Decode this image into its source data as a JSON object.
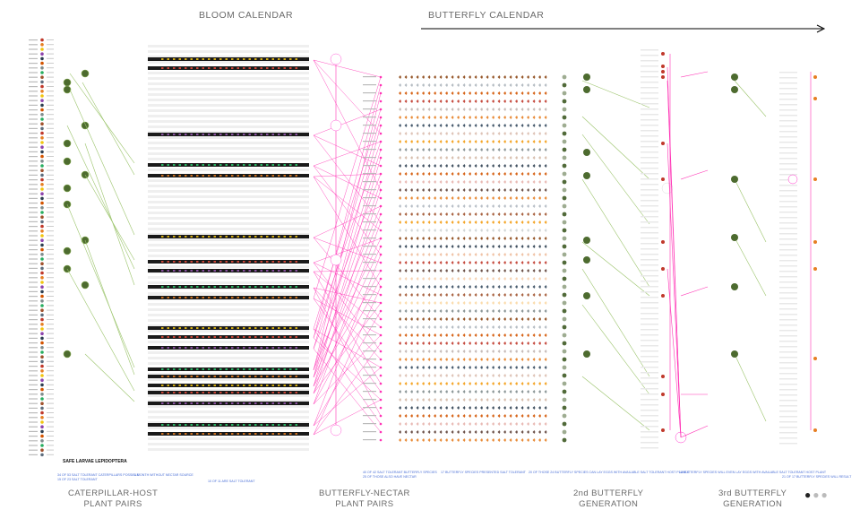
{
  "headers": {
    "bloom": "BLOOM CALENDAR",
    "butterfly": "BUTTERFLY CALENDAR"
  },
  "footers": {
    "caterpillar": [
      "CATERPILLAR-HOST",
      "PLANT PAIRS"
    ],
    "nectar": [
      "BUTTERFLY-NECTAR",
      "PLANT PAIRS"
    ],
    "gen2": [
      "2nd BUTTERFLY",
      "GENERATION"
    ],
    "gen3": [
      "3rd BUTTERFLY",
      "GENERATION"
    ]
  },
  "legend_label": "SAFE LARVAE LEPIDOPTERA",
  "notes": [
    "34 OF 53 SALT TOLERANT CATERPILLARS POSSIBLE",
    "15 OF 23 SALT TOLERANT",
    "1 MONTH WITHOUT NECTAR SOURCE",
    "10 OF 11 ARE SALT TOLERANT",
    "40 OF 42 SALT TOLERANT BUTTERFLY SPECIES",
    "25 OF THOSE ALSO HAVE NECTAR",
    "17 BUTTERFLY SPECIES PRESENTED SALT TOLERANT",
    "20 OF THOSE 24 BUTTERFLY SPECIES CAN LAY EGGS WITH AVAILABLE SALT TOLERANT HOST PLANTS",
    "12 BUTTERFLY SPECIES WILL EVEN LAY EGGS WITH AVAILABLE SALT TOLERANT HOST PLANT",
    "21 OF 17 BUTTERFLY SPECIES WILL RESULT"
  ],
  "pagination": {
    "total": 3,
    "active": 1
  },
  "colors": {
    "host_link": "#9bc46b",
    "nectar_link": "#ff33b5",
    "gen_link": "#ff33b5",
    "bloom_dark": "#1a1a1a",
    "faint_row": "#efefef",
    "note_blue": "#4a6fd6",
    "arrow": "#000000"
  }
}
